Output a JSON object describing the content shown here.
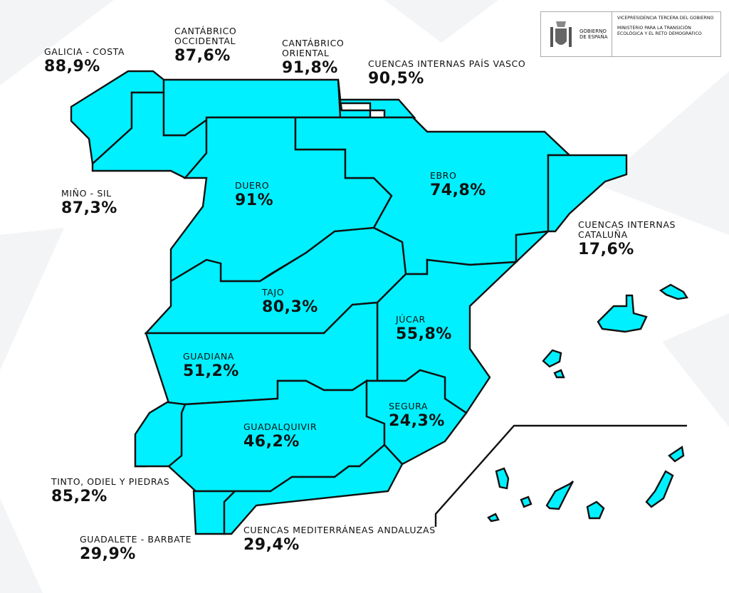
{
  "logo": {
    "gobierno": "GOBIERNO DE ESPAÑA",
    "vicepresidencia": "VICEPRESIDENCIA TERCERA DEL GOBIERNO",
    "ministerio": "MINISTERIO PARA LA TRANSICIÓN ECOLÓGICA Y EL RETO DEMOGRÁFICO"
  },
  "colors": {
    "basin_fill": "#00f0ff",
    "border": "#111111"
  },
  "basins": [
    {
      "name": "GALICIA - COSTA",
      "value": "88,9%"
    },
    {
      "name": "CANTÁBRICO OCCIDENTAL",
      "value": "87,6%"
    },
    {
      "name": "CANTÁBRICO ORIENTAL",
      "value": "91,8%"
    },
    {
      "name": "CUENCAS INTERNAS PAÍS VASCO",
      "value": "90,5%"
    },
    {
      "name": "MIÑO - SIL",
      "value": "87,3%"
    },
    {
      "name": "DUERO",
      "value": "91%"
    },
    {
      "name": "EBRO",
      "value": "74,8%"
    },
    {
      "name": "CUENCAS INTERNAS CATALUÑA",
      "value": "17,6%"
    },
    {
      "name": "TAJO",
      "value": "80,3%"
    },
    {
      "name": "JÚCAR",
      "value": "55,8%"
    },
    {
      "name": "GUADIANA",
      "value": "51,2%"
    },
    {
      "name": "SEGURA",
      "value": "24,3%"
    },
    {
      "name": "GUADALQUIVIR",
      "value": "46,2%"
    },
    {
      "name": "TINTO, ODIEL Y PIEDRAS",
      "value": "85,2%"
    },
    {
      "name": "GUADALETE - BARBATE",
      "value": "29,9%"
    },
    {
      "name": "CUENCAS MEDITERRÁNEAS ANDALUZAS",
      "value": "29,4%"
    }
  ]
}
